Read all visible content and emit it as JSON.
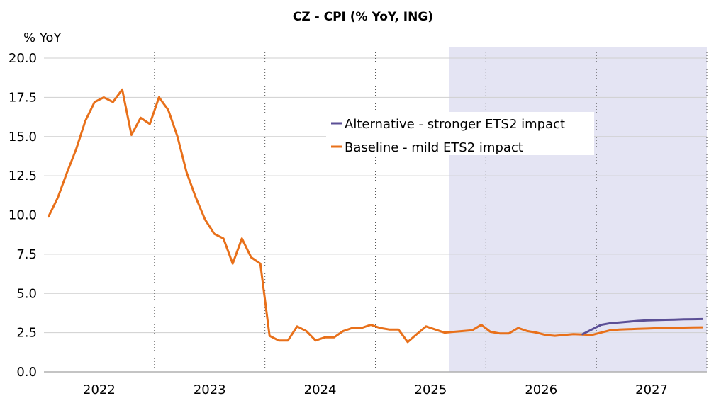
{
  "chart_data": {
    "type": "line",
    "title": "CZ - CPI (% YoY, ING)",
    "ylabel": "% YoY",
    "xlabel": "",
    "ylim": [
      0,
      20
    ],
    "yticks": [
      "0.0",
      "2.5",
      "5.0",
      "7.5",
      "10.0",
      "12.5",
      "15.0",
      "17.5",
      "20.0"
    ],
    "x_tick_labels": [
      "2022",
      "2023",
      "2024",
      "2025",
      "2026",
      "2027"
    ],
    "x_start": "2022-01",
    "x_end": "2027-12",
    "forecast_shading": {
      "from": "2025-09",
      "to": "2027-12",
      "color": "#e4e4f3"
    },
    "grid": true,
    "legend_position": "upper-center",
    "series": [
      {
        "name": "Alternative - stronger ETS2 impact",
        "color": "#5b4f96",
        "x": [
          "2026-11",
          "2026-12",
          "2027-01",
          "2027-02",
          "2027-03",
          "2027-04",
          "2027-05",
          "2027-06",
          "2027-07",
          "2027-08",
          "2027-09",
          "2027-10",
          "2027-11",
          "2027-12"
        ],
        "values": [
          2.4,
          2.7,
          3.0,
          3.1,
          3.15,
          3.2,
          3.25,
          3.28,
          3.3,
          3.32,
          3.33,
          3.35,
          3.36,
          3.37
        ]
      },
      {
        "name": "Baseline - mild ETS2 impact",
        "color": "#e8701a",
        "x": [
          "2022-01",
          "2022-02",
          "2022-03",
          "2022-04",
          "2022-05",
          "2022-06",
          "2022-07",
          "2022-08",
          "2022-09",
          "2022-10",
          "2022-11",
          "2022-12",
          "2023-01",
          "2023-02",
          "2023-03",
          "2023-04",
          "2023-05",
          "2023-06",
          "2023-07",
          "2023-08",
          "2023-09",
          "2023-10",
          "2023-11",
          "2023-12",
          "2024-01",
          "2024-02",
          "2024-03",
          "2024-04",
          "2024-05",
          "2024-06",
          "2024-07",
          "2024-08",
          "2024-09",
          "2024-10",
          "2024-11",
          "2024-12",
          "2025-01",
          "2025-02",
          "2025-03",
          "2025-04",
          "2025-05",
          "2025-06",
          "2025-07",
          "2025-08",
          "2025-09",
          "2025-10",
          "2025-11",
          "2025-12",
          "2026-01",
          "2026-02",
          "2026-03",
          "2026-04",
          "2026-05",
          "2026-06",
          "2026-07",
          "2026-08",
          "2026-09",
          "2026-10",
          "2026-11",
          "2026-12",
          "2027-01",
          "2027-02",
          "2027-03",
          "2027-04",
          "2027-05",
          "2027-06",
          "2027-07",
          "2027-08",
          "2027-09",
          "2027-10",
          "2027-11",
          "2027-12"
        ],
        "values": [
          9.9,
          11.1,
          12.7,
          14.2,
          16.0,
          17.2,
          17.5,
          17.2,
          18.0,
          15.1,
          16.2,
          15.8,
          17.5,
          16.7,
          15.0,
          12.7,
          11.1,
          9.7,
          8.8,
          8.5,
          6.9,
          8.5,
          7.3,
          6.9,
          2.3,
          2.0,
          2.0,
          2.9,
          2.6,
          2.0,
          2.2,
          2.2,
          2.6,
          2.8,
          2.8,
          3.0,
          2.8,
          2.7,
          2.7,
          1.9,
          2.4,
          2.9,
          2.7,
          2.5,
          2.55,
          2.6,
          2.65,
          3.0,
          2.55,
          2.45,
          2.45,
          2.8,
          2.6,
          2.5,
          2.35,
          2.3,
          2.35,
          2.4,
          2.38,
          2.35,
          2.5,
          2.65,
          2.7,
          2.72,
          2.74,
          2.76,
          2.78,
          2.8,
          2.81,
          2.82,
          2.83,
          2.84
        ]
      }
    ]
  }
}
